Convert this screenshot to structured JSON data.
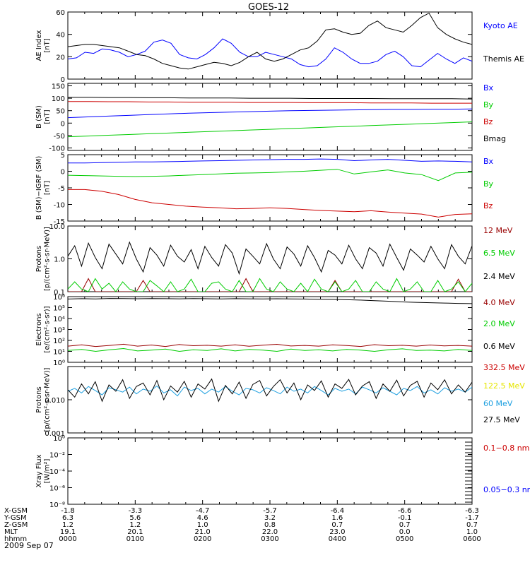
{
  "title": "GOES-12",
  "colors": {
    "black": "#000000",
    "blue": "#0000ff",
    "green": "#00cc00",
    "red": "#cc0000",
    "darkred": "#990000",
    "yellow": "#e6e600",
    "cyan": "#1fa0e0"
  },
  "chart_data": [
    {
      "type": "line",
      "ylabel": "AE Index\n[nT]",
      "ylim": [
        0,
        60
      ],
      "ticks": [
        "0",
        "20",
        "40",
        "60"
      ],
      "tickvals": [
        0,
        20,
        40,
        60
      ],
      "series": [
        {
          "name": "Kyoto AE",
          "color": "#0000ff",
          "values": [
            18,
            19,
            24,
            23,
            27,
            26,
            24,
            20,
            22,
            25,
            33,
            35,
            32,
            22,
            19,
            18,
            22,
            28,
            36,
            32,
            24,
            20,
            20,
            24,
            22,
            20,
            18,
            13,
            11,
            12,
            18,
            28,
            24,
            18,
            14,
            14,
            16,
            22,
            25,
            20,
            12,
            11,
            17,
            23,
            18,
            14,
            19,
            16
          ]
        },
        {
          "name": "Themis AE",
          "color": "#000000",
          "values": [
            29,
            30,
            31,
            31,
            30,
            29,
            28,
            25,
            22,
            21,
            18,
            14,
            12,
            10,
            9,
            11,
            13,
            15,
            14,
            12,
            15,
            20,
            24,
            18,
            16,
            18,
            22,
            26,
            28,
            34,
            44,
            45,
            42,
            40,
            41,
            48,
            52,
            46,
            44,
            42,
            48,
            55,
            59,
            46,
            40,
            36,
            33,
            31
          ]
        }
      ]
    },
    {
      "type": "line",
      "ylabel": "B (SM)\n[nT]",
      "ylim": [
        -110,
        160
      ],
      "ticks": [
        "150",
        "100",
        "50",
        "0",
        "-50",
        "-100"
      ],
      "tickvals": [
        150,
        100,
        50,
        0,
        -50,
        -100
      ],
      "series": [
        {
          "name": "Bx",
          "color": "#0000ff",
          "values": [
            22,
            25,
            28,
            31,
            34,
            37,
            40,
            42,
            44,
            46,
            48,
            50,
            51,
            52,
            53,
            54,
            55,
            55,
            56,
            56,
            57
          ]
        },
        {
          "name": "By",
          "color": "#00cc00",
          "values": [
            -55,
            -52,
            -49,
            -46,
            -43,
            -40,
            -37,
            -34,
            -31,
            -28,
            -25,
            -22,
            -19,
            -16,
            -13,
            -10,
            -7,
            -4,
            -1,
            2,
            5
          ]
        },
        {
          "name": "Bz",
          "color": "#cc0000",
          "values": [
            87,
            87,
            86,
            86,
            85,
            85,
            84,
            84,
            84,
            83,
            83,
            83,
            82,
            82,
            82,
            81,
            81,
            81,
            80,
            80,
            80
          ]
        },
        {
          "name": "Bmag",
          "color": "#000000",
          "values": [
            104,
            104,
            103,
            103,
            102,
            102,
            101,
            101,
            101,
            100,
            100,
            100,
            99,
            99,
            99,
            99,
            98,
            98,
            98,
            98,
            97
          ]
        }
      ]
    },
    {
      "type": "line",
      "ylabel": "B (SM)−IGRF (SM)\n[nT]",
      "ylim": [
        -15,
        5
      ],
      "ticks": [
        "5",
        "0",
        "-5",
        "-10",
        "-15"
      ],
      "tickvals": [
        5,
        0,
        -5,
        -10,
        -15
      ],
      "series": [
        {
          "name": "Bx",
          "color": "#0000ff",
          "values": [
            2.5,
            2.5,
            2.6,
            2.7,
            2.8,
            2.8,
            2.9,
            3.0,
            3.1,
            3.2,
            3.3,
            3.4,
            3.5,
            3.6,
            3.6,
            3.7,
            3.6,
            3.2,
            3.4,
            3.6,
            3.3,
            3.0,
            3.1,
            3.0,
            2.8
          ]
        },
        {
          "name": "By",
          "color": "#00cc00",
          "values": [
            -1.2,
            -1.3,
            -1.4,
            -1.5,
            -1.6,
            -1.5,
            -1.4,
            -1.2,
            -1.0,
            -0.8,
            -0.6,
            -0.5,
            -0.4,
            -0.2,
            0,
            0.3,
            0.6,
            -0.8,
            -0.2,
            0.4,
            -0.5,
            -1.0,
            -2.8,
            -0.5,
            -0.3
          ]
        },
        {
          "name": "Bz",
          "color": "#cc0000",
          "values": [
            -5.5,
            -5.5,
            -6.0,
            -7.0,
            -8.5,
            -9.5,
            -10.0,
            -10.5,
            -10.8,
            -11.0,
            -11.3,
            -11.2,
            -11.0,
            -11.2,
            -11.5,
            -11.8,
            -12.0,
            -12.2,
            -11.9,
            -12.3,
            -12.6,
            -12.9,
            -13.8,
            -13.0,
            -12.8
          ]
        }
      ]
    },
    {
      "type": "line",
      "scale": "log",
      "ylabel": "Protons\n[p/(cm²-s-sr-MeV)]",
      "ylim": [
        0.1,
        10
      ],
      "ticks": [
        "10.0",
        "1.0",
        "0.1"
      ],
      "tickvals": [
        10,
        1,
        0.1
      ],
      "series": [
        {
          "name": "12 MeV",
          "color": "#990000",
          "values": [
            0.1,
            0.1,
            0.1,
            0.25,
            0.1,
            0.1,
            0.1,
            0.1,
            0.1,
            0.1,
            0.1,
            0.22,
            0.1,
            0.1,
            0.1,
            0.1,
            0.1,
            0.1,
            0.1,
            0.1,
            0.1,
            0.1,
            0.1,
            0.1,
            0.1,
            0.1,
            0.25,
            0.1,
            0.1,
            0.1,
            0.1,
            0.1,
            0.1,
            0.1,
            0.1,
            0.1,
            0.1,
            0.1,
            0.1,
            0.22,
            0.1,
            0.1,
            0.1,
            0.1,
            0.1,
            0.1,
            0.1,
            0.1,
            0.1,
            0.1,
            0.1,
            0.1,
            0.1,
            0.1,
            0.1,
            0.1,
            0.1,
            0.24,
            0.1,
            0.1
          ]
        },
        {
          "name": "6.5 MeV",
          "color": "#00cc00",
          "values": [
            0.12,
            0.2,
            0.12,
            0.1,
            0.25,
            0.12,
            0.18,
            0.1,
            0.2,
            0.12,
            0.1,
            0.1,
            0.22,
            0.15,
            0.1,
            0.2,
            0.1,
            0.12,
            0.24,
            0.1,
            0.1,
            0.18,
            0.2,
            0.12,
            0.1,
            0.22,
            0.1,
            0.1,
            0.25,
            0.12,
            0.1,
            0.2,
            0.12,
            0.1,
            0.18,
            0.1,
            0.24,
            0.12,
            0.1,
            0.2,
            0.1,
            0.12,
            0.22,
            0.1,
            0.1,
            0.2,
            0.12,
            0.1,
            0.25,
            0.1,
            0.12,
            0.2,
            0.1,
            0.1,
            0.22,
            0.1,
            0.12,
            0.2,
            0.1,
            0.18
          ]
        },
        {
          "name": "2.4 MeV",
          "color": "#000000",
          "values": [
            1.2,
            2.5,
            0.6,
            3.0,
            1.1,
            0.5,
            2.8,
            1.4,
            0.7,
            3.2,
            1.0,
            0.4,
            2.2,
            1.3,
            0.6,
            2.6,
            1.2,
            0.8,
            1.9,
            0.5,
            2.4,
            1.1,
            0.6,
            2.7,
            1.5,
            0.35,
            2.0,
            1.2,
            0.7,
            2.9,
            1.0,
            0.5,
            2.3,
            1.4,
            0.6,
            2.5,
            1.1,
            0.4,
            1.8,
            1.3,
            0.7,
            2.6,
            1.0,
            0.5,
            2.2,
            1.5,
            0.6,
            2.8,
            1.1,
            0.45,
            2.0,
            1.3,
            0.8,
            2.4,
            1.0,
            0.5,
            2.7,
            1.2,
            0.7,
            2.5
          ]
        }
      ]
    },
    {
      "type": "line",
      "scale": "log",
      "ylabel": "Electrons\n[e/(cm²-s-sr)]",
      "ylim": [
        1,
        1000000
      ],
      "ticks": [
        "10⁶",
        "10⁵",
        "10⁴",
        "10³",
        "10²",
        "10¹",
        "10⁰"
      ],
      "tickvals": [
        1000000,
        100000,
        10000,
        1000,
        100,
        10,
        1
      ],
      "series": [
        {
          "name": "4.0 MeV",
          "color": "#990000",
          "values": [
            30,
            40,
            28,
            35,
            45,
            30,
            38,
            28,
            42,
            33,
            36,
            30,
            40,
            29,
            37,
            44,
            31,
            35,
            30,
            39,
            34,
            28,
            41,
            33,
            36,
            30,
            38,
            32,
            35,
            30
          ]
        },
        {
          "name": "2.0 MeV",
          "color": "#00cc00",
          "values": [
            12,
            15,
            10,
            14,
            18,
            11,
            13,
            16,
            10,
            14,
            12,
            17,
            11,
            15,
            13,
            10,
            16,
            12,
            14,
            11,
            15,
            13,
            10,
            14,
            17,
            12,
            13,
            11,
            15,
            12
          ]
        },
        {
          "name": "0.6 MeV",
          "color": "#000000",
          "values": [
            600000,
            650000,
            620000,
            680000,
            660000,
            640000,
            670000,
            650000,
            630000,
            660000,
            640000,
            620000,
            650000,
            630000,
            610000,
            640000,
            620000,
            600000,
            580000,
            560000,
            520000,
            480000,
            420000,
            380000,
            330000,
            300000,
            280000,
            260000,
            240000,
            230000
          ]
        }
      ]
    },
    {
      "type": "line",
      "scale": "log",
      "ylabel": "Protons\n[p/(cm²-s-sr-MeV)]",
      "ylim": [
        0.001,
        0.1
      ],
      "ticks": [
        "0.010",
        "0.001"
      ],
      "tickvals": [
        0.01,
        0.001
      ],
      "series": [
        {
          "name": "332.5 MeV",
          "color": "#cc0000",
          "values": []
        },
        {
          "name": "122.5 MeV",
          "color": "#e6e600",
          "values": []
        },
        {
          "name": "60 MeV",
          "color": "#1fa0e0",
          "values": [
            0.018,
            0.022,
            0.016,
            0.025,
            0.019,
            0.014,
            0.023,
            0.02,
            0.017,
            0.024,
            0.015,
            0.021,
            0.018,
            0.026,
            0.016,
            0.02,
            0.013,
            0.024,
            0.019,
            0.022,
            0.015,
            0.021,
            0.017,
            0.025,
            0.018,
            0.014,
            0.022,
            0.02,
            0.016,
            0.023,
            0.019,
            0.015,
            0.024,
            0.018,
            0.021,
            0.016,
            0.025,
            0.019,
            0.014,
            0.022,
            0.018,
            0.021,
            0.015,
            0.024,
            0.02,
            0.016,
            0.023,
            0.018,
            0.014,
            0.022,
            0.019,
            0.025,
            0.016,
            0.02,
            0.015,
            0.023,
            0.018,
            0.021,
            0.017,
            0.024
          ]
        },
        {
          "name": "27.5 MeV",
          "color": "#000000",
          "values": [
            0.02,
            0.012,
            0.03,
            0.015,
            0.035,
            0.009,
            0.028,
            0.018,
            0.04,
            0.011,
            0.025,
            0.032,
            0.014,
            0.038,
            0.01,
            0.026,
            0.017,
            0.036,
            0.012,
            0.03,
            0.021,
            0.042,
            0.009,
            0.027,
            0.015,
            0.034,
            0.011,
            0.029,
            0.038,
            0.013,
            0.025,
            0.04,
            0.016,
            0.032,
            0.01,
            0.028,
            0.019,
            0.037,
            0.012,
            0.03,
            0.022,
            0.041,
            0.014,
            0.026,
            0.035,
            0.011,
            0.03,
            0.018,
            0.039,
            0.013,
            0.027,
            0.036,
            0.012,
            0.032,
            0.02,
            0.04,
            0.015,
            0.028,
            0.017,
            0.034
          ]
        }
      ]
    },
    {
      "type": "line",
      "scale": "log",
      "ylabel": "Xray Flux\n[W/m²]",
      "ylim": [
        1e-08,
        1
      ],
      "ticks": [
        "10⁰",
        "10⁻²",
        "10⁻⁴",
        "10⁻⁶",
        "10⁻⁸"
      ],
      "tickvals": [
        1,
        0.01,
        0.0001,
        1e-06,
        1e-08
      ],
      "series": [
        {
          "name": "0.1−0.8 nm",
          "color": "#cc0000",
          "values": []
        },
        {
          "name": "0.05−0.3 nm",
          "color": "#0000ff",
          "values": []
        }
      ]
    }
  ],
  "footer": {
    "rows": [
      {
        "label": "X-GSM",
        "values": [
          "-1.8",
          "-3.3",
          "-4.7",
          "-5.7",
          "-6.4",
          "-6.6",
          "-6.3"
        ]
      },
      {
        "label": "Y-GSM",
        "values": [
          "6.3",
          "5.6",
          "4.6",
          "3.2",
          "1.6",
          "-0.1",
          "-1.7"
        ]
      },
      {
        "label": "Z-GSM",
        "values": [
          "1.2",
          "1.2",
          "1.0",
          "0.8",
          "0.7",
          "0.7",
          "0.7"
        ]
      },
      {
        "label": "MLT",
        "values": [
          "19.1",
          "20.1",
          "21.0",
          "22.0",
          "23.0",
          "0.0",
          "1.0"
        ]
      },
      {
        "label": "hhmm",
        "values": [
          "0000",
          "0100",
          "0200",
          "0300",
          "0400",
          "0500",
          "0600"
        ]
      }
    ],
    "date": "2009 Sep 07"
  }
}
